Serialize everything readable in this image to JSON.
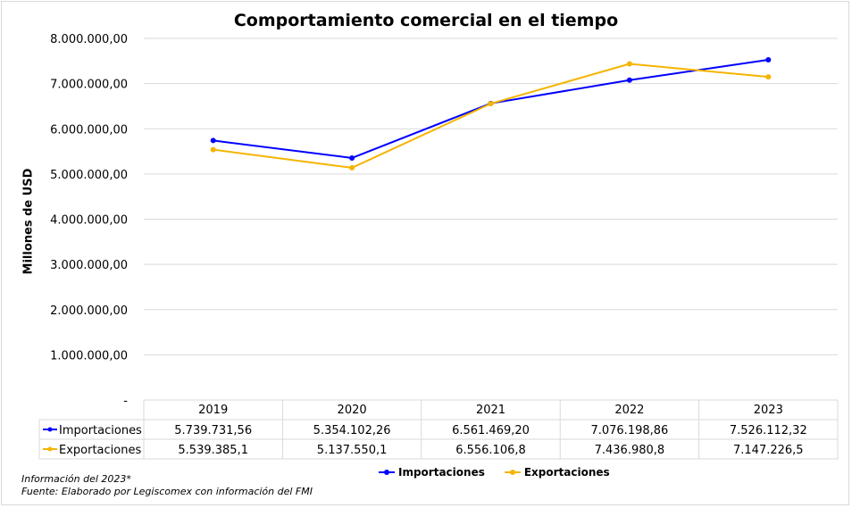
{
  "chart_data": {
    "type": "line",
    "title": "Comportamiento comercial en el tiempo",
    "ylabel": "Millones de USD",
    "xlabel": "",
    "categories": [
      "2019",
      "2020",
      "2021",
      "2022",
      "2023"
    ],
    "ylim": [
      0,
      8000000
    ],
    "yticks": [
      {
        "value": 0,
        "label": "-"
      },
      {
        "value": 1000000,
        "label": "1.000.000,00"
      },
      {
        "value": 2000000,
        "label": "2.000.000,00"
      },
      {
        "value": 3000000,
        "label": "3.000.000,00"
      },
      {
        "value": 4000000,
        "label": "4.000.000,00"
      },
      {
        "value": 5000000,
        "label": "5.000.000,00"
      },
      {
        "value": 6000000,
        "label": "6.000.000,00"
      },
      {
        "value": 7000000,
        "label": "7.000.000,00"
      },
      {
        "value": 8000000,
        "label": "8.000.000,00"
      }
    ],
    "grid": true,
    "legend": "bottom",
    "series": [
      {
        "name": "Importaciones",
        "color": "#0000ff",
        "values": [
          5739731.56,
          5354102.26,
          6561469.2,
          7076198.86,
          7526112.32
        ],
        "labels": [
          "5.739.731,56",
          "5.354.102,26",
          "6.561.469,20",
          "7.076.198,86",
          "7.526.112,32"
        ]
      },
      {
        "name": "Exportaciones",
        "color": "#f5b400",
        "values": [
          5539385.1,
          5137550.1,
          6556106.8,
          7436980.8,
          7147226.5
        ],
        "labels": [
          "5.539.385,1",
          "5.137.550,1",
          "6.556.106,8",
          "7.436.980,8",
          "7.147.226,5"
        ]
      }
    ]
  },
  "notes": {
    "line1": "Información del 2023*",
    "line2": "Fuente: Elaborado por Legiscomex con información del FMI"
  }
}
